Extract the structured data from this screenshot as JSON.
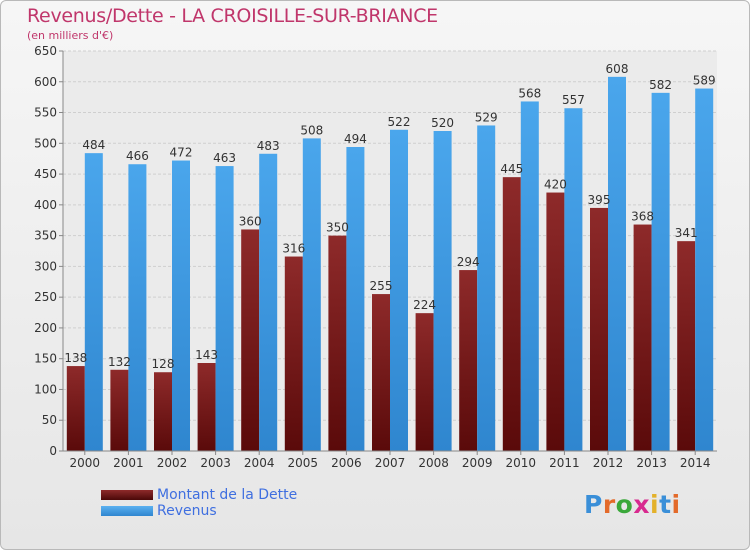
{
  "header": {
    "title": "Revenus/Dette - LA CROISILLE-SUR-BRIANCE",
    "subtitle": "(en milliers d'€)"
  },
  "colors": {
    "dette": "#7a1a1a",
    "revenus": "#3d9be3",
    "title": "#c0366b",
    "legend_text": "#3f6fe0"
  },
  "legend": {
    "items": [
      {
        "label": "Montant de la Dette",
        "color": "#7a1a1a"
      },
      {
        "label": "Revenus",
        "color": "#3d9be3"
      }
    ]
  },
  "logo": {
    "text": "Proxiti",
    "letter_colors": [
      "#3a8fd8",
      "#e36a2a",
      "#3aa83a",
      "#d82a8f",
      "#e3b12a",
      "#3a8fd8",
      "#e36a2a"
    ]
  },
  "chart_data": {
    "type": "bar",
    "categories": [
      "2000",
      "2001",
      "2002",
      "2003",
      "2004",
      "2005",
      "2006",
      "2007",
      "2008",
      "2009",
      "2010",
      "2011",
      "2012",
      "2013",
      "2014"
    ],
    "series": [
      {
        "name": "Montant de la Dette",
        "values": [
          138,
          132,
          128,
          143,
          360,
          316,
          350,
          255,
          224,
          294,
          445,
          420,
          395,
          368,
          341
        ]
      },
      {
        "name": "Revenus",
        "values": [
          484,
          466,
          472,
          463,
          483,
          508,
          494,
          522,
          520,
          529,
          568,
          557,
          608,
          582,
          589
        ]
      }
    ],
    "ylim": [
      0,
      650
    ],
    "yticks": [
      0,
      50,
      100,
      150,
      200,
      250,
      300,
      350,
      400,
      450,
      500,
      550,
      600,
      650
    ],
    "grid": true,
    "legend_position": "bottom-left"
  }
}
